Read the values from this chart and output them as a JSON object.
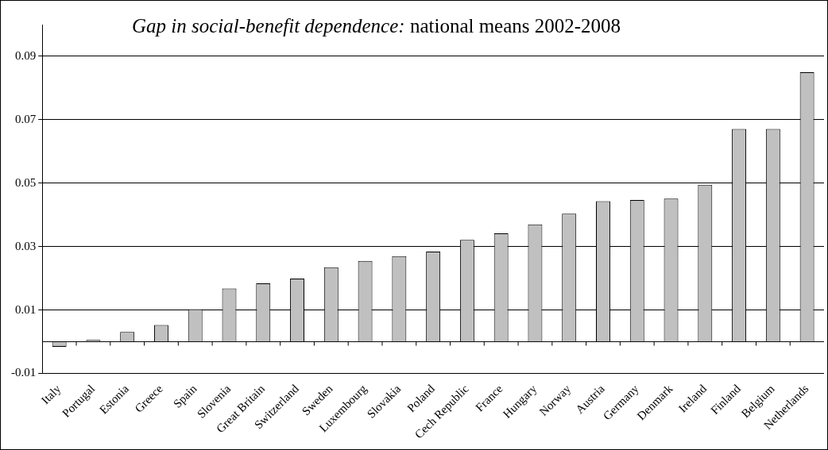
{
  "chart_data": {
    "type": "bar",
    "title": "Gap in social-benefit dependence: national means 2002-2008",
    "categories": [
      "Italy",
      "Portugal",
      "Estonia",
      "Greece",
      "Spain",
      "Slovenia",
      "Great Britain",
      "Switzerland",
      "Sweden",
      "Luxembourg",
      "Slovakia",
      "Poland",
      "Cech Republic",
      "France",
      "Hungary",
      "Norway",
      "Austria",
      "Germany",
      "Denmark",
      "Ireland",
      "Finland",
      "Belgium",
      "Netherlands"
    ],
    "values": [
      -0.0016,
      0.0006,
      0.0031,
      0.0053,
      0.0103,
      0.0168,
      0.0184,
      0.0199,
      0.0235,
      0.0255,
      0.027,
      0.0284,
      0.0321,
      0.0342,
      0.037,
      0.0404,
      0.0443,
      0.0447,
      0.0451,
      0.0495,
      0.0671,
      0.0671,
      0.085
    ],
    "color": "#c0c0c0",
    "ylim": [
      -0.01,
      0.1
    ],
    "yticks": [
      -0.01,
      0.01,
      0.03,
      0.05,
      0.07,
      0.09
    ],
    "grid": "y",
    "legend": false
  }
}
